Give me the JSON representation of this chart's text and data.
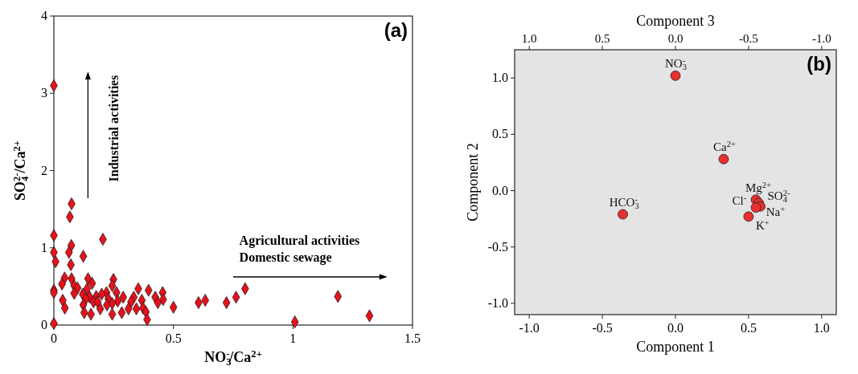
{
  "chart_data": [
    {
      "type": "scatter",
      "xlabel": "NO$_{3}$$^{-}$/Ca$^{2+}$",
      "ylabel": "SO$_{4}$$^{2-}$/Ca$^{2+}$",
      "xlim": [
        0,
        1.5
      ],
      "xticks": [
        0,
        0.5,
        1,
        1.5
      ],
      "ylim": [
        0,
        4
      ],
      "yticks": [
        0,
        1,
        2,
        3,
        4
      ],
      "grid": false,
      "marker": "diamond",
      "annotations": [
        "(a)",
        "Industrial activities",
        "Agricultural activities",
        "Domestic sewage"
      ],
      "series": [
        {
          "color": "#e8101a",
          "x": [
            0,
            0.074,
            0.067,
            0,
            0.205,
            0.073,
            0,
            0.063,
            0.123,
            0.007,
            0.071,
            0.045,
            0.074,
            0.143,
            0.249,
            0.034,
            0.16,
            0.085,
            0.099,
            0.244,
            0,
            0,
            0.353,
            0.396,
            0.455,
            0.762,
            0.8,
            1.188,
            0.139,
            0.121,
            0.085,
            0.22,
            0.262,
            0.2,
            0.177,
            0.29,
            0.15,
            0.334,
            0.424,
            0.037,
            0.134,
            0.166,
            0.183,
            0.228,
            0.267,
            0.323,
            0.368,
            0.457,
            0.435,
            0.605,
            0.633,
            0.722,
            0.5,
            0.046,
            0.123,
            0.222,
            0.244,
            0.312,
            0.345,
            0.373,
            0.194,
            0.284,
            0.385,
            0.127,
            0.155,
            0.244,
            0.39,
            1.32,
            1.008,
            0
          ],
          "values": [
            3.1,
            1.57,
            1.4,
            1.16,
            1.11,
            1.03,
            0.94,
            0.94,
            0.89,
            0.82,
            0.78,
            0.61,
            0.6,
            0.6,
            0.59,
            0.53,
            0.54,
            0.51,
            0.48,
            0.51,
            0.45,
            0.42,
            0.47,
            0.45,
            0.42,
            0.36,
            0.47,
            0.37,
            0.47,
            0.4,
            0.41,
            0.42,
            0.42,
            0.4,
            0.37,
            0.36,
            0.36,
            0.36,
            0.36,
            0.32,
            0.34,
            0.3,
            0.3,
            0.34,
            0.31,
            0.3,
            0.32,
            0.33,
            0.29,
            0.29,
            0.32,
            0.29,
            0.23,
            0.22,
            0.26,
            0.26,
            0.28,
            0.21,
            0.21,
            0.22,
            0.21,
            0.16,
            0.17,
            0.16,
            0.14,
            0.14,
            0.07,
            0.12,
            0.04,
            0.02
          ]
        }
      ]
    },
    {
      "type": "scatter",
      "xlabel": "Component 1",
      "ylabel": "Component 2",
      "x2label": "Component 3",
      "xlim": [
        -1.1,
        1.1
      ],
      "xticks": [
        {
          "value": -1,
          "label": "-1.0"
        },
        {
          "value": -0.5,
          "label": "-0.5"
        },
        {
          "value": 0,
          "label": "0.0"
        },
        {
          "value": 0.5,
          "label": "0.5"
        },
        {
          "value": 1,
          "label": "1.0"
        }
      ],
      "x2lim": [
        1.1,
        -1.1
      ],
      "x2ticks": [
        {
          "value": 1,
          "label": "1.0"
        },
        {
          "value": 0.5,
          "label": "0.5"
        },
        {
          "value": 0,
          "label": "0.0"
        },
        {
          "value": -0.5,
          "label": "-0.5"
        },
        {
          "value": -1,
          "label": "-1.0"
        }
      ],
      "ylim": [
        -1.1,
        1.25
      ],
      "yticks": [
        {
          "value": -1,
          "label": "-1.0"
        },
        {
          "value": -0.5,
          "label": "-0.5"
        },
        {
          "value": 0,
          "label": "0.0"
        },
        {
          "value": 0.5,
          "label": "0.5"
        },
        {
          "value": 1,
          "label": "1.0"
        }
      ],
      "grid": false,
      "marker": "circle",
      "annotations": [
        "(b)"
      ],
      "series": [
        {
          "name": "NO$_{3}$$^{-}$",
          "color": "#e83030",
          "x": [
            0.0
          ],
          "values": [
            1.02
          ]
        },
        {
          "name": "Ca$^{2+}$",
          "color": "#e83030",
          "x": [
            0.33
          ],
          "values": [
            0.28
          ]
        },
        {
          "name": "Mg$^{2+}$",
          "color": "#e83030",
          "x": [
            0.55
          ],
          "values": [
            -0.08
          ]
        },
        {
          "name": "Na$^{+}$",
          "color": "#e83030",
          "x": [
            0.57
          ],
          "values": [
            -0.11
          ]
        },
        {
          "name": "SO$_{4}$$^{2-}$",
          "color": "#e83030",
          "x": [
            0.58
          ],
          "values": [
            -0.14
          ]
        },
        {
          "name": "Cl$^{-}$",
          "color": "#e83030",
          "x": [
            0.55
          ],
          "values": [
            -0.15
          ]
        },
        {
          "name": "K$^{+}$",
          "color": "#e83030",
          "x": [
            0.5
          ],
          "values": [
            -0.23
          ]
        },
        {
          "name": "HCO$_{3}$$^{-}$",
          "color": "#e83030",
          "x": [
            -0.36
          ],
          "values": [
            -0.21
          ]
        }
      ]
    }
  ]
}
